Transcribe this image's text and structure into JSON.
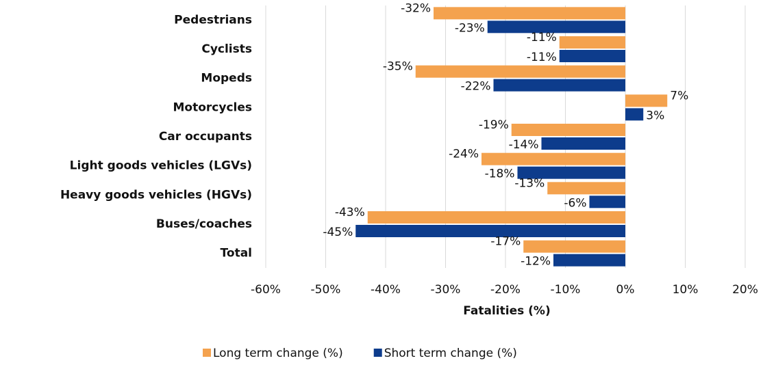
{
  "chart_data": {
    "type": "hbar",
    "categories": [
      "Pedestrians",
      "Cyclists",
      "Mopeds",
      "Motorcycles",
      "Car occupants",
      "Light goods vehicles (LGVs)",
      "Heavy goods vehicles (HGVs)",
      "Buses/coaches",
      "Total"
    ],
    "series": [
      {
        "name": "Long term change (%)",
        "color": "#f4a24e",
        "values": [
          -32,
          -11,
          -35,
          7,
          -19,
          -24,
          -13,
          -43,
          -17
        ],
        "value_labels": [
          "-32%",
          "-11%",
          "-35%",
          "7%",
          "-19%",
          "-24%",
          "-13%",
          "-43%",
          "-17%"
        ]
      },
      {
        "name": "Short term change (%)",
        "color": "#0d3c8c",
        "values": [
          -23,
          -11,
          -22,
          3,
          -14,
          -18,
          -6,
          -45,
          -12
        ],
        "value_labels": [
          "-23%",
          "-11%",
          "-22%",
          "3%",
          "-14%",
          "-18%",
          "-6%",
          "-45%",
          "-12%"
        ]
      }
    ],
    "xlabel": "Fatalities (%)",
    "xlim": [
      -60,
      20
    ],
    "xticks": [
      {
        "value": -60,
        "label": "-60%"
      },
      {
        "value": -50,
        "label": "-50%"
      },
      {
        "value": -40,
        "label": "-40%"
      },
      {
        "value": -30,
        "label": "-30%"
      },
      {
        "value": -20,
        "label": "-20%"
      },
      {
        "value": -10,
        "label": "-10%"
      },
      {
        "value": 0,
        "label": "0%"
      },
      {
        "value": 10,
        "label": "10%"
      },
      {
        "value": 20,
        "label": "20%"
      }
    ],
    "grid": true,
    "legend": "bottom"
  }
}
